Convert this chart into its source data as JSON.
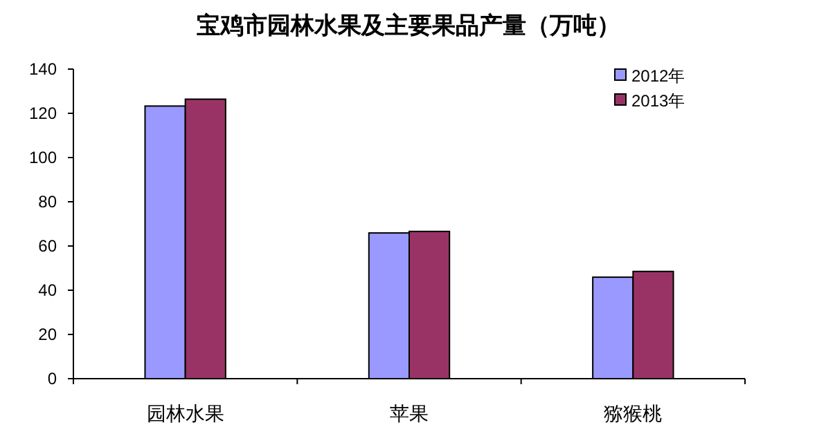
{
  "chart_data": {
    "type": "bar",
    "title": "宝鸡市园林水果及主要果品产量（万吨）",
    "categories": [
      "园林水果",
      "苹果",
      "猕猴桃"
    ],
    "series": [
      {
        "name": "2012年",
        "color": "#9999ff",
        "values": [
          123.3,
          65.9,
          45.9
        ]
      },
      {
        "name": "2013年",
        "color": "#993366",
        "values": [
          126.4,
          66.6,
          48.5
        ]
      }
    ],
    "ylim": [
      0,
      140
    ],
    "yticks": [
      0,
      20,
      40,
      60,
      80,
      100,
      120,
      140
    ],
    "grid": false,
    "legend": "top right"
  }
}
